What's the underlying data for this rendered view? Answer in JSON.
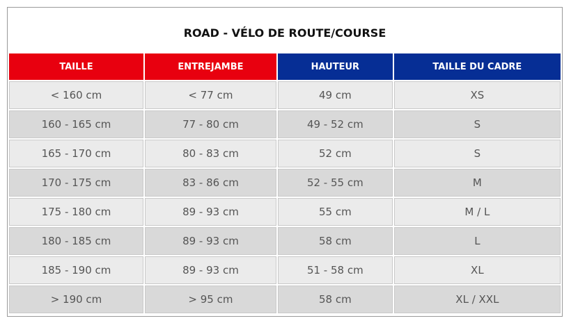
{
  "table": {
    "title": "ROAD - VÉLO DE ROUTE/COURSE",
    "headers": [
      "TAILLE",
      "ENTREJAMBE",
      "HAUTEUR",
      "TAILLE DU CADRE"
    ],
    "rows": [
      [
        "< 160 cm",
        "< 77 cm",
        "49 cm",
        "XS"
      ],
      [
        "160 - 165 cm",
        "77 - 80 cm",
        "49 - 52 cm",
        "S"
      ],
      [
        "165 - 170 cm",
        "80 - 83 cm",
        "52 cm",
        "S"
      ],
      [
        "170 - 175 cm",
        "83 - 86 cm",
        "52 - 55 cm",
        "M"
      ],
      [
        "175 - 180 cm",
        "89 - 93 cm",
        "55 cm",
        "M / L"
      ],
      [
        "180 - 185 cm",
        "89 - 93 cm",
        "58 cm",
        "L"
      ],
      [
        "185 - 190 cm",
        "89 - 93 cm",
        "51 - 58 cm",
        "XL"
      ],
      [
        "> 190 cm",
        "> 95 cm",
        "58 cm",
        "XL / XXL"
      ]
    ]
  }
}
